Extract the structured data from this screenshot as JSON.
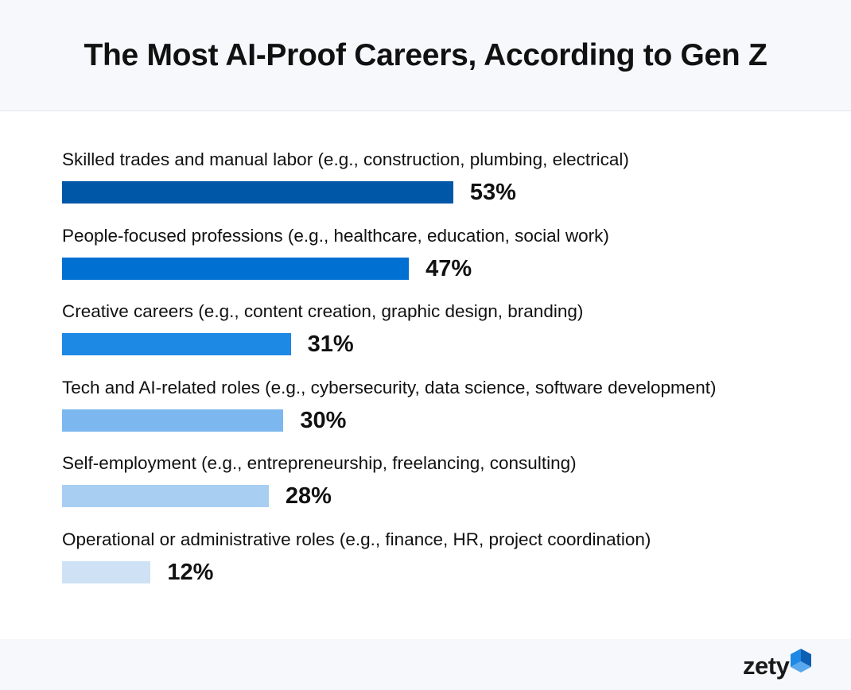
{
  "chart_data": {
    "type": "bar",
    "orientation": "horizontal",
    "title": "The Most AI-Proof Careers, According to Gen Z",
    "categories": [
      "Skilled trades and manual labor (e.g., construction, plumbing, electrical)",
      "People-focused professions (e.g., healthcare, education, social work)",
      "Creative careers (e.g., content creation, graphic design, branding)",
      "Tech and AI-related roles (e.g., cybersecurity, data science, software development)",
      "Self-employment (e.g., entrepreneurship, freelancing, consulting)",
      "Operational or administrative roles (e.g., finance, HR, project coordination)"
    ],
    "values": [
      53,
      47,
      31,
      30,
      28,
      12
    ],
    "value_labels": [
      "53%",
      "47%",
      "31%",
      "30%",
      "28%",
      "12%"
    ],
    "bar_colors": [
      "#0057a8",
      "#0070d2",
      "#1e88e5",
      "#7cb8ef",
      "#a8cef1",
      "#cfe2f5"
    ],
    "xlim": [
      0,
      100
    ],
    "grid": false
  },
  "brand": {
    "logo_text": "zety",
    "accent_color": "#1e88e5"
  }
}
